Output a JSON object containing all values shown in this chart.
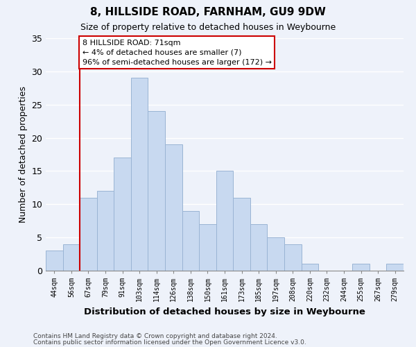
{
  "title": "8, HILLSIDE ROAD, FARNHAM, GU9 9DW",
  "subtitle": "Size of property relative to detached houses in Weybourne",
  "xlabel": "Distribution of detached houses by size in Weybourne",
  "ylabel": "Number of detached properties",
  "bin_labels": [
    "44sqm",
    "56sqm",
    "67sqm",
    "79sqm",
    "91sqm",
    "103sqm",
    "114sqm",
    "126sqm",
    "138sqm",
    "150sqm",
    "161sqm",
    "173sqm",
    "185sqm",
    "197sqm",
    "208sqm",
    "220sqm",
    "232sqm",
    "244sqm",
    "255sqm",
    "267sqm",
    "279sqm"
  ],
  "bar_heights": [
    3,
    4,
    11,
    12,
    17,
    29,
    24,
    19,
    9,
    7,
    15,
    11,
    7,
    5,
    4,
    1,
    0,
    0,
    1,
    0,
    1
  ],
  "bar_color": "#c8d9f0",
  "bar_edge_color": "#9ab4d4",
  "vline_x_idx": 2,
  "vline_color": "#cc0000",
  "ylim": [
    0,
    35
  ],
  "yticks": [
    0,
    5,
    10,
    15,
    20,
    25,
    30,
    35
  ],
  "annotation_text": "8 HILLSIDE ROAD: 71sqm\n← 4% of detached houses are smaller (7)\n96% of semi-detached houses are larger (172) →",
  "annotation_box_color": "#ffffff",
  "annotation_box_edge": "#cc0000",
  "footer1": "Contains HM Land Registry data © Crown copyright and database right 2024.",
  "footer2": "Contains public sector information licensed under the Open Government Licence v3.0.",
  "background_color": "#eef2fa"
}
